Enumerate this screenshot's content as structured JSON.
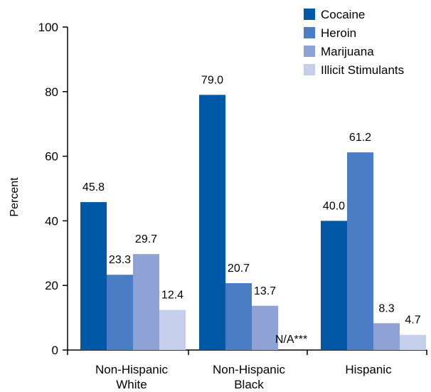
{
  "chart_data": {
    "type": "bar",
    "title": "",
    "xlabel": "",
    "ylabel": "Percent",
    "ylim": [
      0,
      100
    ],
    "yticks": [
      "0",
      "20",
      "40",
      "60",
      "80",
      "100"
    ],
    "grid": false,
    "legend_position": "top-right",
    "categories": [
      {
        "line1": "Non-Hispanic",
        "line2": "White"
      },
      {
        "line1": "Non-Hispanic",
        "line2": "Black"
      },
      {
        "line1": "Hispanic",
        "line2": ""
      }
    ],
    "series": [
      {
        "name": "Cocaine",
        "color": "#0058a6",
        "values": [
          45.8,
          79.0,
          40.0
        ],
        "labels": [
          "45.8",
          "79.0",
          "40.0"
        ]
      },
      {
        "name": "Heroin",
        "color": "#4a7dc3",
        "values": [
          23.3,
          20.7,
          61.2
        ],
        "labels": [
          "23.3",
          "20.7",
          "61.2"
        ]
      },
      {
        "name": "Marijuana",
        "color": "#8ea2d6",
        "values": [
          29.7,
          13.7,
          8.3
        ],
        "labels": [
          "29.7",
          "13.7",
          "8.3"
        ]
      },
      {
        "name": "Illicit Stimulants",
        "color": "#c5cfec",
        "values": [
          12.4,
          null,
          4.7
        ],
        "labels": [
          "12.4",
          "N/A***",
          "4.7"
        ]
      }
    ]
  }
}
